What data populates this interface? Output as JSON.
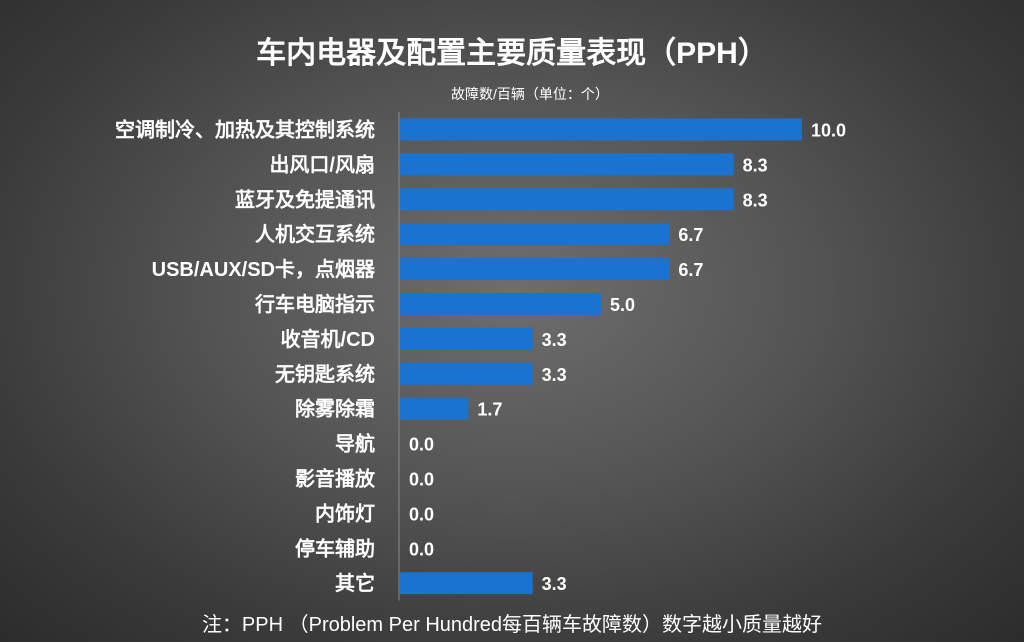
{
  "chart_data": {
    "type": "bar",
    "orientation": "horizontal",
    "title": "车内电器及配置主要质量表现（PPH）",
    "subtitle": "故障数/百辆（单位：个）",
    "categories": [
      "空调制冷、加热及其控制系统",
      "出风口/风扇",
      "蓝牙及免提通讯",
      "人机交互系统",
      "USB/AUX/SD卡，点烟器",
      "行车电脑指示",
      "收音机/CD",
      "无钥匙系统",
      "除雾除霜",
      "导航",
      "影音播放",
      "内饰灯",
      "停车辅助",
      "其它"
    ],
    "values": [
      10.0,
      8.3,
      8.3,
      6.7,
      6.7,
      5.0,
      3.3,
      3.3,
      1.7,
      0.0,
      0.0,
      0.0,
      0.0,
      3.3
    ],
    "value_labels": [
      "10.0",
      "8.3",
      "8.3",
      "6.7",
      "6.7",
      "5.0",
      "3.3",
      "3.3",
      "1.7",
      "0.0",
      "0.0",
      "0.0",
      "0.0",
      "3.3"
    ],
    "xlim": [
      0,
      10
    ],
    "grid": false,
    "legend": "none",
    "bar_color": "#1a73d1",
    "footnote": "注：PPH （Problem Per Hundred每百辆车故障数）数字越小质量越好"
  }
}
